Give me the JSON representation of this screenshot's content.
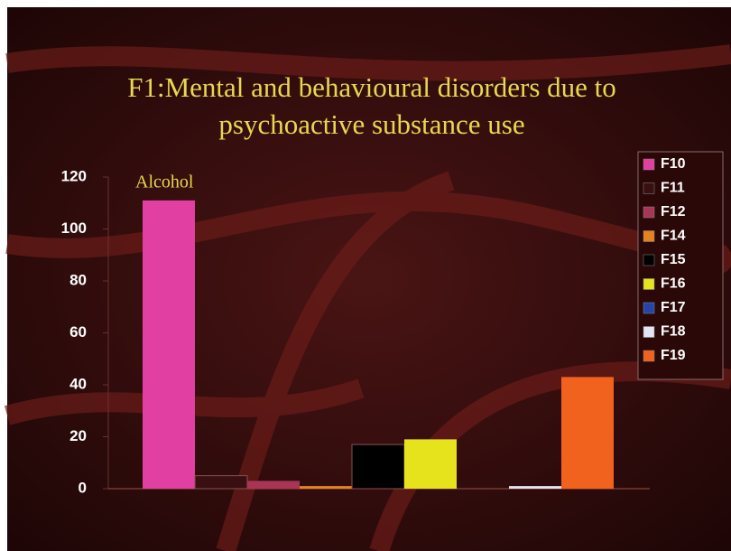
{
  "chart_data": {
    "type": "bar",
    "title": [
      "F1:Mental and behavioural disorders due to",
      "psychoactive substance use"
    ],
    "annotation": "Alcohol",
    "categories": [
      null
    ],
    "series": [
      {
        "name": "F10",
        "color": "#e23fa2",
        "values": [
          111
        ]
      },
      {
        "name": "F11",
        "color": "#3a0f12",
        "values": [
          5
        ]
      },
      {
        "name": "F12",
        "color": "#a83556",
        "values": [
          3
        ]
      },
      {
        "name": "F14",
        "color": "#e8821e",
        "values": [
          1
        ]
      },
      {
        "name": "F15",
        "color": "#000000",
        "values": [
          17
        ]
      },
      {
        "name": "F16",
        "color": "#e6e21c",
        "values": [
          19
        ]
      },
      {
        "name": "F17",
        "color": "#2445a8",
        "values": [
          0
        ]
      },
      {
        "name": "F18",
        "color": "#e4e4f2",
        "values": [
          1
        ]
      },
      {
        "name": "F19",
        "color": "#f0621e",
        "values": [
          43
        ]
      }
    ],
    "ylim": [
      0,
      120
    ],
    "yticks": [
      0,
      20,
      40,
      60,
      80,
      100,
      120
    ],
    "grid": false,
    "legend": "right"
  }
}
